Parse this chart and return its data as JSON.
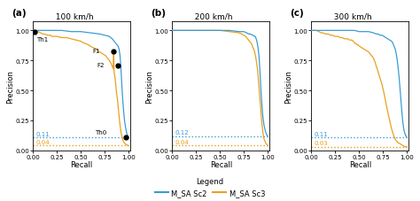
{
  "blue_color": "#3A9BD5",
  "orange_color": "#E8A020",
  "background": "#ffffff",
  "panels": [
    {
      "label": "(a)",
      "title": "100 km/h",
      "baseline_blue": 0.11,
      "baseline_orange": 0.04,
      "baseline_blue_str": "0.11",
      "baseline_orange_str": "0.04",
      "show_annotations": true,
      "th0_label": "Th0",
      "th1_label": "Th1",
      "f1_label": "F1",
      "f2_label": "F2",
      "th1_point": [
        0.02,
        0.99
      ],
      "f1_point": [
        0.845,
        0.825
      ],
      "f2_point": [
        0.885,
        0.705
      ],
      "th0_point": [
        0.975,
        0.11
      ]
    },
    {
      "label": "(b)",
      "title": "200 km/h",
      "baseline_blue": 0.12,
      "baseline_orange": 0.04,
      "baseline_blue_str": "0.12",
      "baseline_orange_str": "0.04",
      "show_annotations": false
    },
    {
      "label": "(c)",
      "title": "300 km/h",
      "baseline_blue": 0.11,
      "baseline_orange": 0.03,
      "baseline_blue_str": "0.11",
      "baseline_orange_str": "0.03",
      "show_annotations": false
    }
  ],
  "xlabel": "Recall",
  "ylabel": "Precision",
  "legend_label_blue": "M_SA Sc2",
  "legend_label_orange": "M_SA Sc3",
  "legend_title": "Legend"
}
